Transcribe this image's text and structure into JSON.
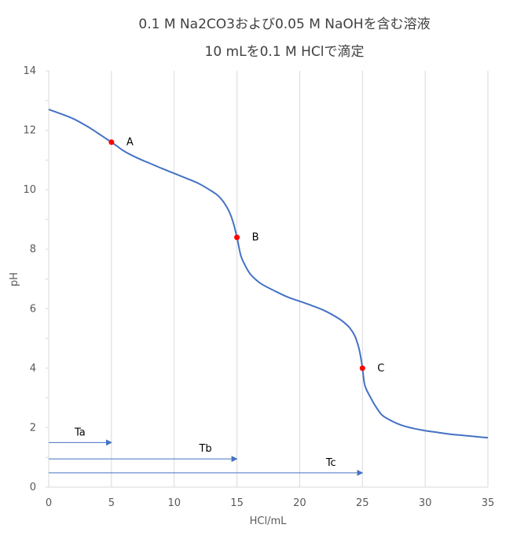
{
  "chart_data": {
    "type": "line",
    "title_line1": "0.1 M Na2CO3および0.05 M NaOHを含む溶液",
    "title_line2": "10 mLを0.1 M HClで滴定",
    "xlabel": "HCl/mL",
    "ylabel": "pH",
    "xlim": [
      0,
      35
    ],
    "ylim": [
      0,
      14
    ],
    "xticks": [
      0,
      5,
      10,
      15,
      20,
      25,
      30,
      35
    ],
    "yticks": [
      0,
      2,
      4,
      6,
      8,
      10,
      12,
      14
    ],
    "grid": "vertical-major",
    "colors": {
      "curve": "#4472c4",
      "points": "#ff0000",
      "axis": "#d9d9d9"
    },
    "series": [
      {
        "x": [
          0,
          1,
          2,
          3,
          3.5,
          4,
          4.5,
          5,
          5.5,
          6,
          7,
          8,
          9,
          10,
          11,
          12,
          13,
          13.5,
          14,
          14.4,
          14.7,
          15,
          15.3,
          15.6,
          16,
          16.5,
          17,
          18,
          19,
          20,
          21,
          22,
          23,
          23.5,
          24,
          24.4,
          24.7,
          24.85,
          25,
          25.15,
          25.3,
          25.6,
          26,
          26.5,
          27,
          28,
          29,
          30,
          31,
          32,
          33,
          34,
          35
        ],
        "y": [
          12.7,
          12.55,
          12.38,
          12.15,
          12.02,
          11.88,
          11.74,
          11.6,
          11.45,
          11.3,
          11.08,
          10.9,
          10.72,
          10.55,
          10.38,
          10.2,
          9.95,
          9.8,
          9.55,
          9.25,
          8.9,
          8.4,
          7.8,
          7.5,
          7.2,
          6.98,
          6.82,
          6.6,
          6.4,
          6.25,
          6.1,
          5.93,
          5.7,
          5.55,
          5.35,
          5.08,
          4.7,
          4.4,
          4.0,
          3.5,
          3.3,
          3.05,
          2.75,
          2.45,
          2.3,
          2.1,
          1.98,
          1.9,
          1.84,
          1.78,
          1.74,
          1.7,
          1.66
        ]
      }
    ],
    "points": [
      {
        "label": "A",
        "x": 5,
        "y": 11.6
      },
      {
        "label": "B",
        "x": 15,
        "y": 8.4
      },
      {
        "label": "C",
        "x": 25,
        "y": 4.0
      }
    ],
    "arrows": [
      {
        "label": "Ta",
        "from_x": 0,
        "to_x": 5,
        "y": 1.5
      },
      {
        "label": "Tb",
        "from_x": 0,
        "to_x": 15,
        "y": 0.95
      },
      {
        "label": "Tc",
        "from_x": 0,
        "to_x": 25,
        "y": 0.48
      }
    ]
  }
}
